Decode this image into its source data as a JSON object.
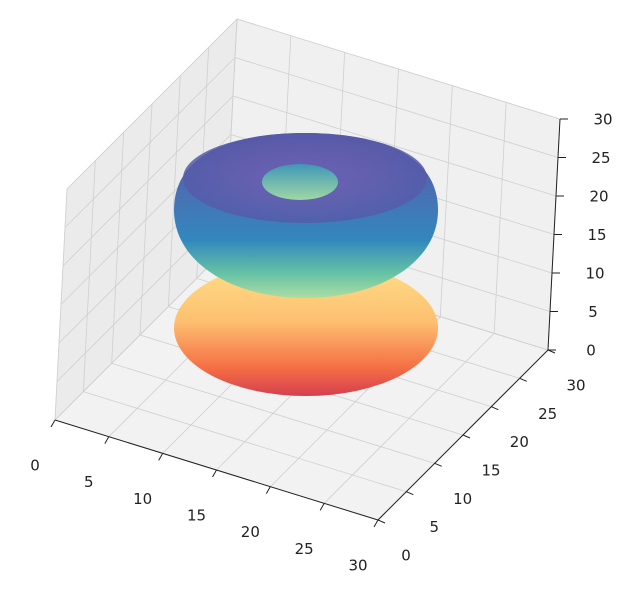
{
  "chart_data": {
    "type": "surface3d",
    "xlim": [
      0,
      30
    ],
    "ylim": [
      0,
      30
    ],
    "zlim": [
      0,
      30
    ],
    "xticks": [
      0,
      5,
      10,
      15,
      20,
      25,
      30
    ],
    "yticks": [
      0,
      5,
      10,
      15,
      20,
      25,
      30
    ],
    "zticks": [
      0,
      5,
      10,
      15,
      20,
      25,
      30
    ],
    "grid": true
  }
}
